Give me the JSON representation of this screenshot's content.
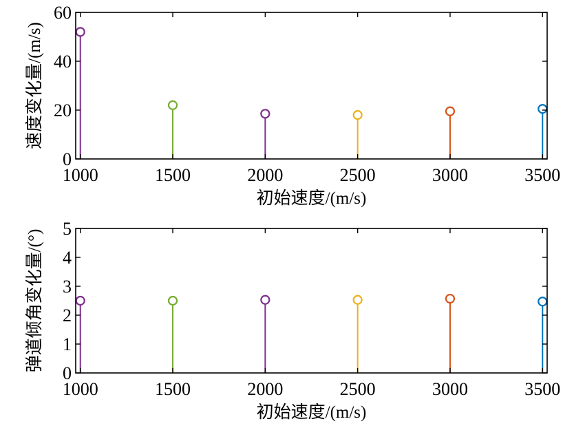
{
  "chart_data": [
    {
      "type": "stem",
      "xlabel": "初始速度/(m/s)",
      "ylabel": "速度变化量/(m/s)",
      "x": [
        1000,
        1500,
        2000,
        2500,
        3000,
        3500
      ],
      "values": [
        52,
        22,
        18.5,
        18,
        19.5,
        20.5
      ],
      "colors": [
        "#7E2F8E",
        "#77AC30",
        "#7E2F8E",
        "#EDB120",
        "#D95319",
        "#0072BD"
      ],
      "xlim": [
        975,
        3525
      ],
      "ylim": [
        0,
        60
      ],
      "xticks": [
        1000,
        1500,
        2000,
        2500,
        3000,
        3500
      ],
      "yticks": [
        0,
        20,
        40,
        60
      ],
      "grid": false
    },
    {
      "type": "stem",
      "xlabel": "初始速度/(m/s)",
      "ylabel": "弹道倾角变化量/(°)",
      "x": [
        1000,
        1500,
        2000,
        2500,
        3000,
        3500
      ],
      "values": [
        2.5,
        2.5,
        2.53,
        2.53,
        2.57,
        2.47
      ],
      "colors": [
        "#7E2F8E",
        "#77AC30",
        "#7E2F8E",
        "#EDB120",
        "#D95319",
        "#0072BD"
      ],
      "xlim": [
        975,
        3525
      ],
      "ylim": [
        0,
        5
      ],
      "xticks": [
        1000,
        1500,
        2000,
        2500,
        3000,
        3500
      ],
      "yticks": [
        0,
        1,
        2,
        3,
        4,
        5
      ],
      "grid": false
    }
  ]
}
